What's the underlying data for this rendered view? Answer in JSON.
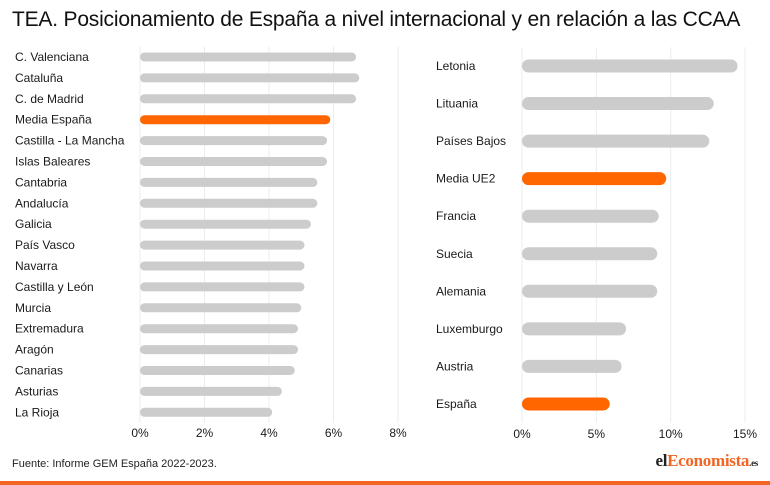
{
  "title": "TEA. Posicionamiento de España a nivel internacional y en relación a las CCAA",
  "source": "Fuente: Informe GEM España 2022-2023.",
  "logo": {
    "part1": "el",
    "part2": "Economista",
    "part3": ".es"
  },
  "colors": {
    "highlight": "#ff6600",
    "bar": "#cccccc",
    "grid": "#ececec",
    "brand": "#f26522"
  },
  "chart_data": [
    {
      "type": "bar",
      "orientation": "horizontal",
      "categories": [
        "C. Valenciana",
        "Cataluña",
        "C. de Madrid",
        "Media España",
        "Castilla - La Mancha",
        "Islas Baleares",
        "Cantabria",
        "Andalucía",
        "Galicia",
        "País Vasco",
        "Navarra",
        "Castilla y León",
        "Murcia",
        "Extremadura",
        "Aragón",
        "Canarias",
        "Asturias",
        "La Rioja"
      ],
      "values": [
        6.7,
        6.8,
        6.7,
        5.9,
        5.8,
        5.8,
        5.5,
        5.5,
        5.3,
        5.1,
        5.1,
        5.1,
        5.0,
        4.9,
        4.9,
        4.8,
        4.4,
        4.1
      ],
      "highlight": [
        "Media España"
      ],
      "xlim": [
        0,
        8
      ],
      "ticks": [
        "0%",
        "2%",
        "4%",
        "6%",
        "8%"
      ],
      "tick_values": [
        0,
        2,
        4,
        6,
        8
      ],
      "grid": true
    },
    {
      "type": "bar",
      "orientation": "horizontal",
      "categories": [
        "Letonia",
        "Lituania",
        "Países Bajos",
        "Media UE2",
        "Francia",
        "Suecia",
        "Alemania",
        "Luxemburgo",
        "Austria",
        "España"
      ],
      "values": [
        14.5,
        12.9,
        12.6,
        9.7,
        9.2,
        9.1,
        9.1,
        7.0,
        6.7,
        5.9
      ],
      "highlight": [
        "Media UE2",
        "España"
      ],
      "xlim": [
        0,
        15
      ],
      "ticks": [
        "0%",
        "5%",
        "10%",
        "15%"
      ],
      "tick_values": [
        0,
        5,
        10,
        15
      ],
      "grid": true
    }
  ]
}
